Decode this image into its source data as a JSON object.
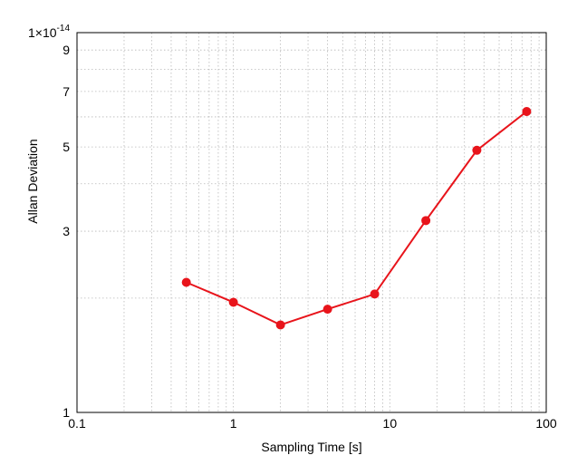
{
  "chart_data": {
    "type": "line",
    "title": "",
    "xlabel": "Sampling Time [s]",
    "ylabel": "Allan Deviation",
    "xscale": "log",
    "yscale": "log",
    "xlim": [
      0.1,
      100
    ],
    "ylim": [
      1e-14,
      1e-13
    ],
    "grid": true,
    "x_ticks": [
      {
        "value": 0.1,
        "label": "0.1"
      },
      {
        "value": 1,
        "label": "1"
      },
      {
        "value": 10,
        "label": "10"
      },
      {
        "value": 100,
        "label": "100"
      }
    ],
    "y_ticks": [
      {
        "value": 1e-14,
        "label": "1"
      },
      {
        "value": 3e-14,
        "label": "3"
      },
      {
        "value": 5e-14,
        "label": "5"
      },
      {
        "value": 7e-14,
        "label": "7"
      },
      {
        "value": 9e-14,
        "label": "9"
      }
    ],
    "y_top_label": {
      "mantissa": "1",
      "times": "×",
      "base": "10",
      "exponent": "-14"
    },
    "series": [
      {
        "color": "#e8141b",
        "x": [
          0.5,
          1,
          2,
          4,
          8,
          17,
          36,
          75
        ],
        "y": [
          2.2e-14,
          1.95e-14,
          1.7e-14,
          1.87e-14,
          2.05e-14,
          3.2e-14,
          4.9e-14,
          6.2e-14
        ]
      }
    ]
  }
}
